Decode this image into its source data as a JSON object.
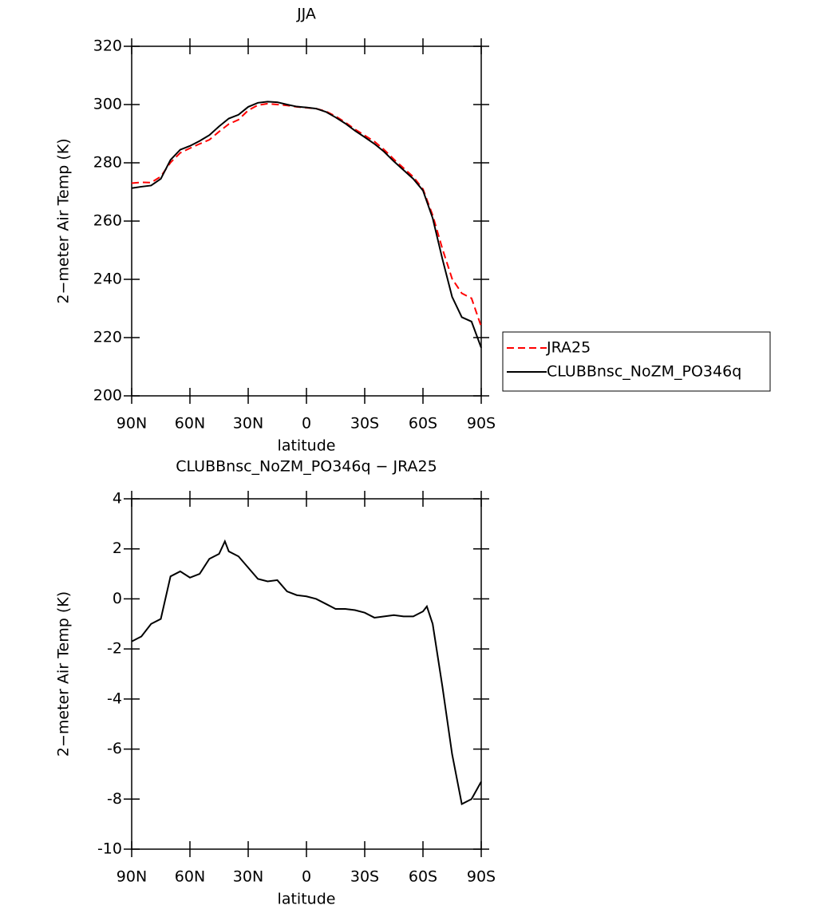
{
  "chart_data": [
    {
      "type": "line",
      "title": "JJA",
      "xlabel": "latitude",
      "ylabel": "2−meter Air Temp (K)",
      "x": [
        90,
        85,
        80,
        75,
        70,
        65,
        60,
        55,
        50,
        45,
        40,
        35,
        30,
        25,
        20,
        15,
        10,
        5,
        0,
        -5,
        -10,
        -15,
        -20,
        -25,
        -30,
        -35,
        -40,
        -45,
        -50,
        -55,
        -60,
        -65,
        -70,
        -75,
        -80,
        -85,
        -90
      ],
      "series": [
        {
          "name": "JRA25",
          "color": "#ff0000",
          "linestyle": "dashed",
          "values": [
            273.0,
            273.3,
            273.2,
            275.3,
            280.1,
            283.4,
            285.0,
            286.5,
            287.9,
            290.7,
            293.3,
            294.8,
            298.0,
            299.8,
            300.3,
            300.0,
            299.7,
            299.2,
            298.9,
            298.6,
            297.7,
            296.0,
            293.9,
            291.5,
            289.4,
            287.3,
            284.5,
            281.2,
            278.2,
            275.2,
            271.0,
            262.0,
            250.5,
            240.2,
            235.2,
            233.5,
            223.8
          ]
        },
        {
          "name": "CLUBBnsc_NoZM_PO346q",
          "color": "#000000",
          "linestyle": "solid",
          "values": [
            271.3,
            271.8,
            272.2,
            274.5,
            281.0,
            284.5,
            285.8,
            287.5,
            289.5,
            292.5,
            295.2,
            296.5,
            299.2,
            300.6,
            301.0,
            300.8,
            300.0,
            299.3,
            299.0,
            298.6,
            297.5,
            295.6,
            293.5,
            291.0,
            288.8,
            286.5,
            283.8,
            280.5,
            277.5,
            274.5,
            270.5,
            261.0,
            247.0,
            234.0,
            227.0,
            225.5,
            216.5
          ]
        }
      ],
      "xlim": [
        90,
        -90
      ],
      "xticks": [
        {
          "value": 90,
          "label": "90N"
        },
        {
          "value": 60,
          "label": "60N"
        },
        {
          "value": 30,
          "label": "30N"
        },
        0,
        {
          "value": -30,
          "label": "30S"
        },
        {
          "value": -60,
          "label": "60S"
        },
        {
          "value": -90,
          "label": "90S"
        }
      ],
      "ylim": [
        200,
        320
      ],
      "yticks": [
        200,
        220,
        240,
        260,
        280,
        300,
        320
      ],
      "legend": "right"
    },
    {
      "type": "line",
      "title": "CLUBBnsc_NoZM_PO346q − JRA25",
      "xlabel": "latitude",
      "ylabel": "2−meter Air Temp (K)",
      "x": [
        90,
        85,
        80,
        75,
        70,
        65,
        60,
        55,
        50,
        45,
        42,
        40,
        35,
        30,
        25,
        20,
        15,
        10,
        5,
        0,
        -5,
        -10,
        -15,
        -20,
        -25,
        -30,
        -35,
        -40,
        -45,
        -50,
        -55,
        -60,
        -62,
        -65,
        -70,
        -75,
        -80,
        -85,
        -90
      ],
      "values": [
        -1.7,
        -1.5,
        -1.0,
        -0.8,
        0.9,
        1.1,
        0.85,
        1.0,
        1.6,
        1.8,
        2.3,
        1.9,
        1.7,
        1.25,
        0.8,
        0.7,
        0.75,
        0.3,
        0.15,
        0.1,
        0.0,
        -0.2,
        -0.4,
        -0.4,
        -0.45,
        -0.55,
        -0.75,
        -0.7,
        -0.65,
        -0.7,
        -0.7,
        -0.5,
        -0.3,
        -1.0,
        -3.5,
        -6.2,
        -8.2,
        -8.0,
        -7.3
      ],
      "color": "#000000",
      "xlim": [
        90,
        -90
      ],
      "xticks": [
        {
          "value": 90,
          "label": "90N"
        },
        {
          "value": 60,
          "label": "60N"
        },
        {
          "value": 30,
          "label": "30N"
        },
        0,
        {
          "value": -30,
          "label": "30S"
        },
        {
          "value": -60,
          "label": "60S"
        },
        {
          "value": -90,
          "label": "90S"
        }
      ],
      "ylim": [
        -10,
        4
      ],
      "yticks": [
        -10,
        -8,
        -6,
        -4,
        -2,
        0,
        2,
        4
      ]
    }
  ]
}
